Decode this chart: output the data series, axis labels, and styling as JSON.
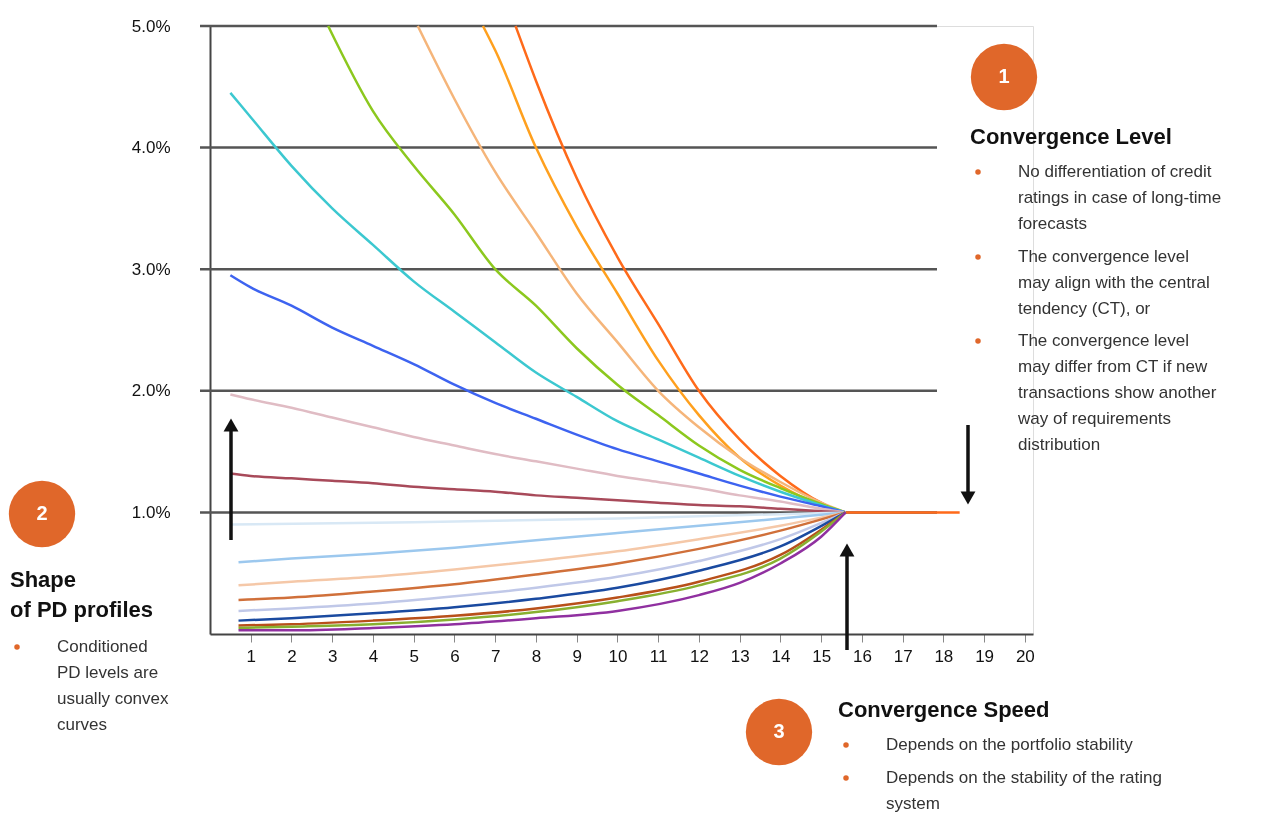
{
  "chart_data": {
    "type": "line",
    "xlim": [
      0,
      20.2
    ],
    "xticks": [
      1,
      2,
      3,
      4,
      5,
      6,
      7,
      8,
      9,
      10,
      11,
      12,
      13,
      14,
      15,
      16,
      17,
      18,
      19,
      20
    ],
    "ylim": [
      0,
      5
    ],
    "yticks": [
      {
        "value": 1,
        "label": "1.0%"
      },
      {
        "value": 2,
        "label": "2.0%"
      },
      {
        "value": 3,
        "label": "3.0%"
      },
      {
        "value": 4,
        "label": "4.0%"
      },
      {
        "value": 5,
        "label": "5.0%"
      }
    ],
    "grid": "y",
    "legend": false,
    "series": [
      {
        "color": "#ff6a1a",
        "x": [
          7.5,
          8,
          9,
          10,
          11,
          12,
          13,
          14,
          15,
          15.6,
          16,
          17,
          18,
          18.4
        ],
        "values": [
          5.0,
          4.55,
          3.75,
          3.1,
          2.55,
          2.0,
          1.6,
          1.3,
          1.08,
          1.0,
          1.0,
          1.0,
          1.0,
          1.0
        ]
      },
      {
        "color": "#ffa01e",
        "x": [
          6.7,
          7,
          8,
          9,
          10,
          11,
          12,
          13,
          14,
          15,
          15.6
        ],
        "values": [
          5.0,
          4.8,
          4.0,
          3.35,
          2.8,
          2.25,
          1.8,
          1.45,
          1.22,
          1.06,
          1.0
        ]
      },
      {
        "color": "#f5b57a",
        "x": [
          5.1,
          6,
          7,
          8,
          9,
          10,
          11,
          12,
          13,
          14,
          15,
          15.6
        ],
        "values": [
          5.0,
          4.4,
          3.8,
          3.3,
          2.8,
          2.4,
          2.0,
          1.7,
          1.45,
          1.25,
          1.08,
          1.0
        ]
      },
      {
        "color": "#8cc81e",
        "x": [
          2.9,
          4,
          5,
          6,
          7,
          8,
          9,
          10,
          11,
          12,
          13,
          14,
          15,
          15.6
        ],
        "values": [
          5.0,
          4.3,
          3.85,
          3.45,
          3.0,
          2.7,
          2.35,
          2.05,
          1.8,
          1.55,
          1.35,
          1.2,
          1.07,
          1.0
        ]
      },
      {
        "color": "#3cc8d0",
        "x": [
          0.5,
          1,
          2,
          3,
          4,
          5,
          6,
          7,
          8,
          9,
          10,
          11,
          12,
          13,
          14,
          15,
          15.6
        ],
        "values": [
          4.45,
          4.25,
          3.85,
          3.5,
          3.2,
          2.9,
          2.65,
          2.4,
          2.15,
          1.95,
          1.75,
          1.6,
          1.45,
          1.3,
          1.17,
          1.06,
          1.0
        ]
      },
      {
        "color": "#3d63f0",
        "x": [
          0.5,
          1,
          2,
          3,
          4,
          5,
          6,
          7,
          8,
          9,
          10,
          11,
          12,
          13,
          14,
          15,
          15.6
        ],
        "values": [
          2.95,
          2.85,
          2.7,
          2.52,
          2.37,
          2.22,
          2.05,
          1.9,
          1.77,
          1.64,
          1.52,
          1.42,
          1.32,
          1.22,
          1.13,
          1.05,
          1.0
        ]
      },
      {
        "color": "#e0bcc4",
        "x": [
          0.5,
          1,
          2,
          3,
          4,
          5,
          6,
          7,
          8,
          9,
          10,
          11,
          12,
          13,
          14,
          15,
          15.6
        ],
        "values": [
          1.97,
          1.93,
          1.86,
          1.78,
          1.7,
          1.62,
          1.55,
          1.48,
          1.42,
          1.36,
          1.3,
          1.25,
          1.2,
          1.14,
          1.09,
          1.03,
          1.0
        ]
      },
      {
        "color": "#a84a5a",
        "x": [
          0.5,
          1,
          2,
          3,
          4,
          5,
          6,
          7,
          8,
          9,
          10,
          11,
          12,
          13,
          14,
          15,
          15.6
        ],
        "values": [
          1.32,
          1.3,
          1.28,
          1.26,
          1.24,
          1.21,
          1.19,
          1.17,
          1.14,
          1.12,
          1.1,
          1.08,
          1.06,
          1.05,
          1.03,
          1.01,
          1.0
        ]
      },
      {
        "color": "#d8e8f5",
        "x": [
          0.5,
          5,
          10,
          15.6
        ],
        "values": [
          0.9,
          0.92,
          0.95,
          1.0
        ]
      },
      {
        "color": "#9cc8ee",
        "x": [
          0.7,
          2,
          4,
          6,
          8,
          10,
          12,
          14,
          15.6
        ],
        "values": [
          0.59,
          0.62,
          0.66,
          0.71,
          0.77,
          0.83,
          0.89,
          0.95,
          1.0
        ]
      },
      {
        "color": "#f5c8a8",
        "x": [
          0.7,
          2,
          4,
          6,
          8,
          10,
          12,
          14,
          15.6
        ],
        "values": [
          0.4,
          0.43,
          0.47,
          0.53,
          0.6,
          0.68,
          0.78,
          0.89,
          1.0
        ]
      },
      {
        "color": "#d0703a",
        "x": [
          0.7,
          2,
          4,
          6,
          8,
          10,
          12,
          14,
          15.6
        ],
        "values": [
          0.28,
          0.3,
          0.35,
          0.41,
          0.49,
          0.58,
          0.7,
          0.85,
          1.0
        ]
      },
      {
        "color": "#c0c8e8",
        "x": [
          0.7,
          2,
          4,
          6,
          8,
          10,
          12,
          14,
          15.6
        ],
        "values": [
          0.19,
          0.21,
          0.25,
          0.31,
          0.38,
          0.47,
          0.6,
          0.78,
          1.0
        ]
      },
      {
        "color": "#1a4aa0",
        "x": [
          0.7,
          2,
          4,
          6,
          8,
          10,
          12,
          14,
          15.6
        ],
        "values": [
          0.11,
          0.13,
          0.17,
          0.22,
          0.29,
          0.38,
          0.52,
          0.72,
          1.0
        ]
      },
      {
        "color": "#b8501a",
        "x": [
          0.7,
          2,
          4,
          6,
          8,
          10,
          12,
          14,
          15.6
        ],
        "values": [
          0.07,
          0.08,
          0.11,
          0.15,
          0.21,
          0.3,
          0.43,
          0.65,
          1.0
        ]
      },
      {
        "color": "#88b030",
        "x": [
          0.7,
          2,
          4,
          6,
          8,
          10,
          12,
          14,
          15.6
        ],
        "values": [
          0.05,
          0.06,
          0.08,
          0.12,
          0.18,
          0.27,
          0.4,
          0.62,
          1.0
        ]
      },
      {
        "color": "#9030a0",
        "x": [
          0.7,
          2,
          4,
          6,
          8,
          10,
          12,
          13,
          14,
          15,
          15.6
        ],
        "values": [
          0.03,
          0.03,
          0.05,
          0.08,
          0.13,
          0.19,
          0.32,
          0.42,
          0.58,
          0.8,
          1.0
        ]
      }
    ],
    "annotations": [
      "1",
      "Convergence Level",
      "No differentiation of credit\nratings in case of long-time\nforecasts",
      "The convergence level\nmay align with the central\ntendency (CT), or",
      "The convergence level\nmay differ from CT if new\ntransactions show another\nway of requirements\ndistribution",
      "2",
      "Shape\nof PD profiles",
      "Conditioned\nPD levels are\nusually convex\ncurves",
      "3",
      "Convergence Speed",
      "Depends on the portfolio stability",
      "Depends on the stability of the rating\nsystem"
    ]
  }
}
